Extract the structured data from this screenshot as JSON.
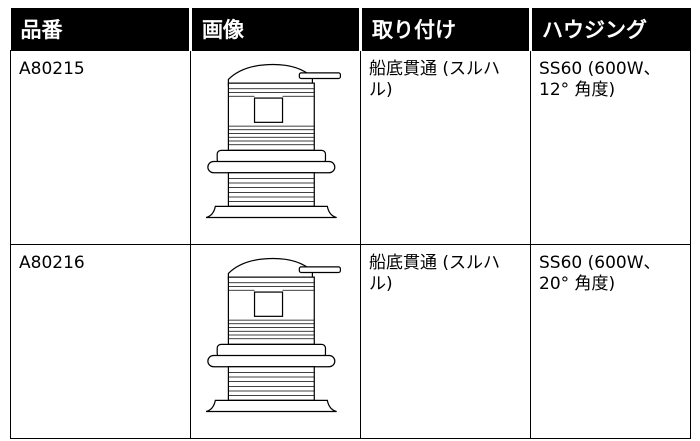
{
  "table": {
    "header": [
      "品番",
      "画像",
      "取り付け",
      "ハウジング"
    ],
    "rows": [
      {
        "part_number": "A80215",
        "mounting": "船底貫通 (スルハル)",
        "housing": "SS60 (600W、12° 角度)"
      },
      {
        "part_number": "A80216",
        "mounting": "船底貫通 (スルハル)",
        "housing": "SS60 (600W、20° 角度)"
      }
    ]
  }
}
